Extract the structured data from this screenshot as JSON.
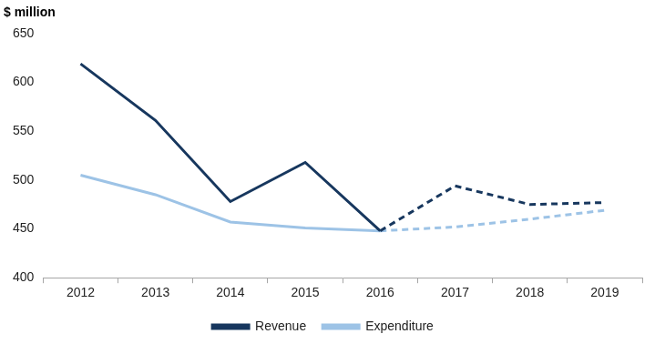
{
  "chart_data": {
    "type": "line",
    "ylabel": "$ million",
    "categories": [
      "2012",
      "2013",
      "2014",
      "2015",
      "2016",
      "2017",
      "2018",
      "2019"
    ],
    "series": [
      {
        "name": "Revenue",
        "color": "#17375e",
        "line_style": "solid",
        "values": [
          619,
          561,
          478,
          518,
          448,
          494,
          475,
          477
        ]
      },
      {
        "name": "Expenditure",
        "color": "#9dc3e6",
        "line_style": "solid",
        "values": [
          505,
          485,
          457,
          451,
          448,
          452,
          460,
          469
        ]
      }
    ],
    "projection_start": "2016",
    "ylim": [
      400,
      650
    ],
    "yticks": [
      400,
      450,
      500,
      550,
      600,
      650
    ],
    "grid": false,
    "legend": "bottom"
  }
}
